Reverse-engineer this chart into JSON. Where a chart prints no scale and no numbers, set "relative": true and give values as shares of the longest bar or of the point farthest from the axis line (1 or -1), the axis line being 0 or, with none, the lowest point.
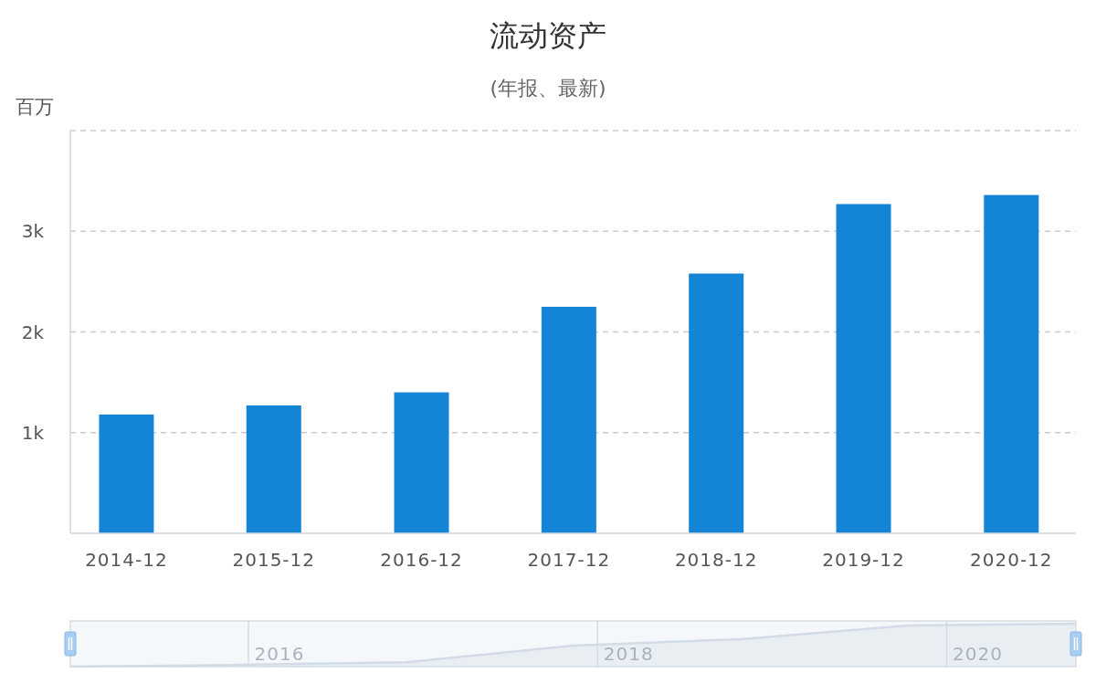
{
  "chart_data": [
    {
      "type": "bar",
      "title": "流动资产",
      "subtitle": "(年报、最新)",
      "ylabel": "百万",
      "x": [
        "2014-12",
        "2015-12",
        "2016-12",
        "2017-12",
        "2018-12",
        "2019-12",
        "2020-12"
      ],
      "values": [
        1180,
        1270,
        1400,
        2250,
        2580,
        3270,
        3360
      ],
      "color": "#1484d6",
      "ylim": [
        0,
        4000
      ],
      "yticks": [
        {
          "value": 0,
          "label": null
        },
        {
          "value": 1000,
          "label": "1k"
        },
        {
          "value": 2000,
          "label": "2k"
        },
        {
          "value": 3000,
          "label": "3k"
        },
        {
          "value": 4000,
          "label": null
        }
      ],
      "xlim": [
        "2014-07-15",
        "2021-05-10"
      ],
      "xticks": [
        {
          "value": "2014-12",
          "label": "2014-12"
        },
        {
          "value": "2015-12",
          "label": "2015-12"
        },
        {
          "value": "2016-12",
          "label": "2016-12"
        },
        {
          "value": "2017-12",
          "label": "2017-12"
        },
        {
          "value": "2018-12",
          "label": "2018-12"
        },
        {
          "value": "2019-12",
          "label": "2019-12"
        },
        {
          "value": "2020-12",
          "label": "2020-12"
        }
      ],
      "grid": "y"
    },
    {
      "type": "area",
      "relative": true,
      "color": "#d3dce6",
      "x": [
        "2014-12",
        "2015-12",
        "2016-12",
        "2017-12",
        "2018-12",
        "2019-12",
        "2020-12"
      ],
      "values": [
        0,
        0.04,
        0.1,
        0.49,
        0.64,
        0.96,
        1
      ],
      "xlim": [
        "2014-12",
        "2020-12"
      ],
      "xticks": [
        {
          "value": "2016-03",
          "label": "2016"
        },
        {
          "value": "2018-04",
          "label": "2018"
        },
        {
          "value": "2020-05",
          "label": "2020"
        }
      ],
      "grid": "x"
    }
  ]
}
